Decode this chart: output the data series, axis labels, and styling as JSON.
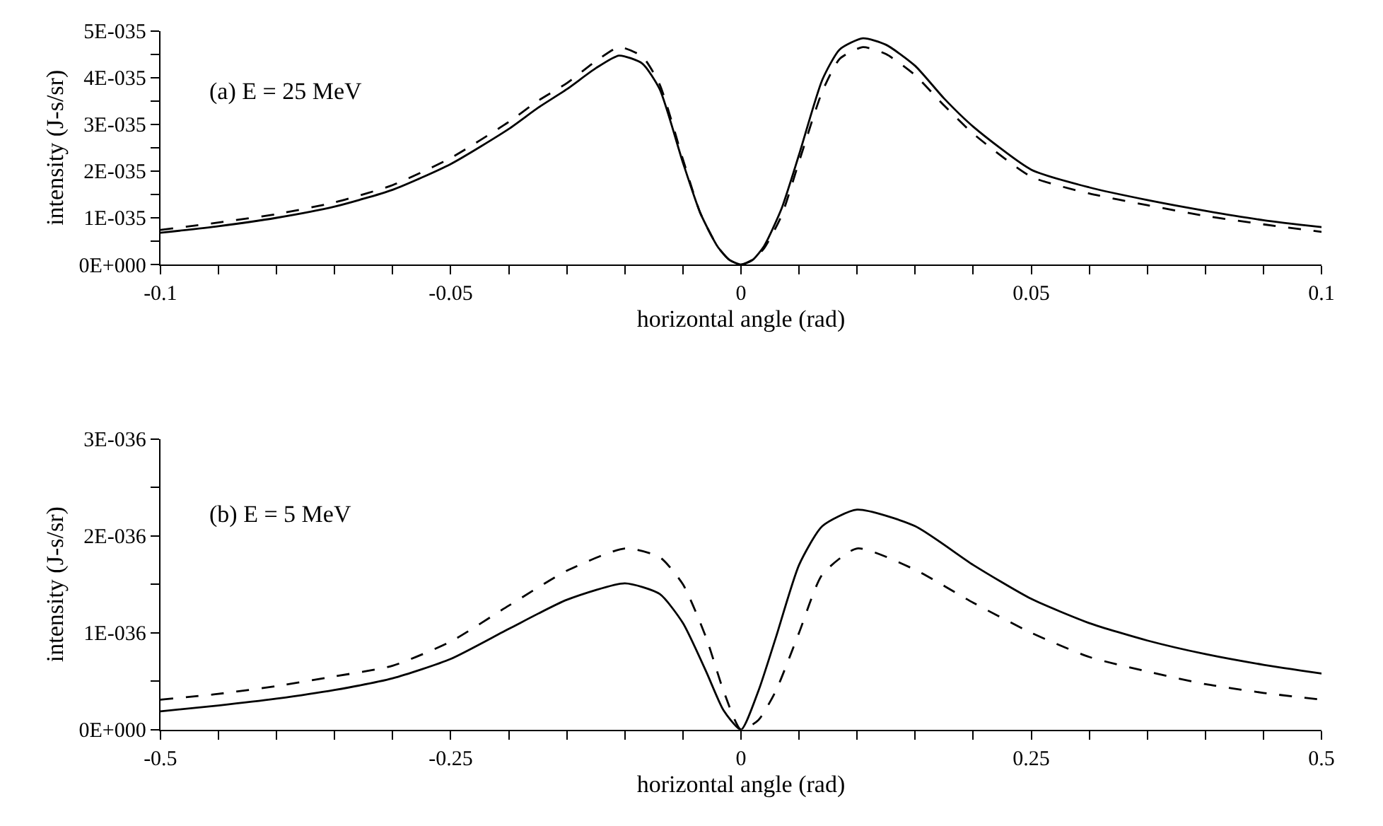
{
  "chart_data": [
    {
      "type": "line",
      "xlabel": "horizontal angle (rad)",
      "ylabel": "intensity (J-s/sr)",
      "annotations": [
        "(a) E = 25 MeV"
      ],
      "marker": "none",
      "xlim": [
        -0.1,
        0.1
      ],
      "xticks": [
        -0.1,
        {
          "value": -0.09,
          "label": null
        },
        {
          "value": -0.08,
          "label": null
        },
        {
          "value": -0.07,
          "label": null
        },
        {
          "value": -0.06,
          "label": null
        },
        -0.05,
        {
          "value": -0.04,
          "label": null
        },
        {
          "value": -0.03,
          "label": null
        },
        {
          "value": -0.02,
          "label": null
        },
        {
          "value": -0.01,
          "label": null
        },
        0,
        {
          "value": 0.01,
          "label": null
        },
        {
          "value": 0.02,
          "label": null
        },
        {
          "value": 0.03,
          "label": null
        },
        {
          "value": 0.04,
          "label": null
        },
        0.05,
        {
          "value": 0.06,
          "label": null
        },
        {
          "value": 0.07,
          "label": null
        },
        {
          "value": 0.08,
          "label": null
        },
        {
          "value": 0.09,
          "label": null
        },
        0.1
      ],
      "ylim": [
        0,
        5e-35
      ],
      "yticks": [
        {
          "value": 0,
          "label": "0E+000"
        },
        {
          "value": 5e-36,
          "label": null
        },
        {
          "value": 1e-35,
          "label": "1E-035"
        },
        {
          "value": 1.5e-35,
          "label": null
        },
        {
          "value": 2e-35,
          "label": "2E-035"
        },
        {
          "value": 2.5e-35,
          "label": null
        },
        {
          "value": 3e-35,
          "label": "3E-035"
        },
        {
          "value": 3.5e-35,
          "label": null
        },
        {
          "value": 4e-35,
          "label": "4E-035"
        },
        {
          "value": 4.5e-35,
          "label": null
        },
        {
          "value": 5e-35,
          "label": "5E-035"
        }
      ],
      "series": [
        {
          "color": "#000000",
          "line_style": "solid",
          "x": [
            -0.1,
            -0.09,
            -0.08,
            -0.07,
            -0.06,
            -0.05,
            -0.04,
            -0.035,
            -0.03,
            -0.025,
            -0.021,
            -0.017,
            -0.014,
            -0.01,
            -0.007,
            -0.004,
            -0.002,
            0,
            0.002,
            0.004,
            0.007,
            0.01,
            0.014,
            0.017,
            0.021,
            0.025,
            0.03,
            0.035,
            0.04,
            0.05,
            0.06,
            0.07,
            0.08,
            0.09,
            0.1
          ],
          "values": [
            6.8e-36,
            8.2e-36,
            1e-35,
            1.24e-35,
            1.6e-35,
            2.15e-35,
            2.9e-35,
            3.35e-35,
            3.75e-35,
            4.2e-35,
            4.47e-35,
            4.3e-35,
            3.75e-35,
            2.18e-35,
            1.1e-35,
            3.8e-36,
            1e-36,
            0,
            1e-36,
            4e-36,
            1.2e-35,
            2.35e-35,
            3.95e-35,
            4.6e-35,
            4.84e-35,
            4.7e-35,
            4.25e-35,
            3.55e-35,
            2.95e-35,
            2.03e-35,
            1.65e-35,
            1.38e-35,
            1.15e-35,
            9.5e-36,
            8e-36
          ]
        },
        {
          "color": "#000000",
          "line_style": "dashed",
          "x": [
            -0.1,
            -0.09,
            -0.08,
            -0.07,
            -0.06,
            -0.05,
            -0.04,
            -0.035,
            -0.03,
            -0.025,
            -0.021,
            -0.017,
            -0.014,
            -0.01,
            -0.007,
            -0.004,
            -0.002,
            0,
            0.002,
            0.004,
            0.007,
            0.01,
            0.014,
            0.017,
            0.021,
            0.025,
            0.03,
            0.035,
            0.04,
            0.05,
            0.06,
            0.07,
            0.08,
            0.09,
            0.1
          ],
          "values": [
            7.4e-36,
            9e-36,
            1.08e-35,
            1.33e-35,
            1.7e-35,
            2.28e-35,
            3.05e-35,
            3.5e-35,
            3.88e-35,
            4.35e-35,
            4.65e-35,
            4.45e-35,
            3.85e-35,
            2.25e-35,
            1.1e-35,
            3.8e-36,
            1e-36,
            0,
            1e-36,
            3.5e-36,
            1.05e-35,
            2.2e-35,
            3.7e-35,
            4.4e-35,
            4.65e-35,
            4.5e-35,
            4.05e-35,
            3.4e-35,
            2.8e-35,
            1.88e-35,
            1.52e-35,
            1.27e-35,
            1.04e-35,
            8.6e-36,
            7e-36
          ]
        }
      ]
    },
    {
      "type": "line",
      "xlabel": "horizontal angle (rad)",
      "ylabel": "intensity (J-s/sr)",
      "annotations": [
        "(b) E = 5 MeV"
      ],
      "marker": "none",
      "xlim": [
        -0.5,
        0.5
      ],
      "xticks": [
        -0.5,
        {
          "value": -0.45,
          "label": null
        },
        {
          "value": -0.4,
          "label": null
        },
        {
          "value": -0.35,
          "label": null
        },
        {
          "value": -0.3,
          "label": null
        },
        -0.25,
        {
          "value": -0.2,
          "label": null
        },
        {
          "value": -0.15,
          "label": null
        },
        {
          "value": -0.1,
          "label": null
        },
        {
          "value": -0.05,
          "label": null
        },
        0,
        {
          "value": 0.05,
          "label": null
        },
        {
          "value": 0.1,
          "label": null
        },
        {
          "value": 0.15,
          "label": null
        },
        {
          "value": 0.2,
          "label": null
        },
        0.25,
        {
          "value": 0.3,
          "label": null
        },
        {
          "value": 0.35,
          "label": null
        },
        {
          "value": 0.4,
          "label": null
        },
        {
          "value": 0.45,
          "label": null
        },
        0.5
      ],
      "ylim": [
        0,
        3e-36
      ],
      "yticks": [
        {
          "value": 0,
          "label": "0E+000"
        },
        {
          "value": 5e-37,
          "label": null
        },
        {
          "value": 1e-36,
          "label": "1E-036"
        },
        {
          "value": 1.5e-36,
          "label": null
        },
        {
          "value": 2e-36,
          "label": "2E-036"
        },
        {
          "value": 2.5e-36,
          "label": null
        },
        {
          "value": 3e-36,
          "label": "3E-036"
        }
      ],
      "series": [
        {
          "color": "#000000",
          "line_style": "solid",
          "x": [
            -0.5,
            -0.45,
            -0.4,
            -0.35,
            -0.3,
            -0.25,
            -0.2,
            -0.15,
            -0.1,
            -0.07,
            -0.05,
            -0.03,
            -0.015,
            0,
            0.015,
            0.03,
            0.05,
            0.07,
            0.1,
            0.15,
            0.2,
            0.25,
            0.3,
            0.35,
            0.4,
            0.45,
            0.5
          ],
          "values": [
            1.9e-37,
            2.5e-37,
            3.2e-37,
            4.1e-37,
            5.3e-37,
            7.3e-37,
            1.04e-36,
            1.34e-36,
            1.51e-36,
            1.4e-36,
            1.1e-36,
            6e-37,
            2e-37,
            0,
            4e-37,
            9.5e-37,
            1.7e-36,
            2.1e-36,
            2.27e-36,
            2.1e-36,
            1.7e-36,
            1.35e-36,
            1.1e-36,
            9.2e-37,
            7.8e-37,
            6.7e-37,
            5.8e-37
          ]
        },
        {
          "color": "#000000",
          "line_style": "dashed",
          "x": [
            -0.5,
            -0.45,
            -0.4,
            -0.35,
            -0.3,
            -0.25,
            -0.2,
            -0.15,
            -0.1,
            -0.07,
            -0.05,
            -0.03,
            -0.015,
            0,
            0.015,
            0.03,
            0.05,
            0.07,
            0.1,
            0.15,
            0.2,
            0.25,
            0.3,
            0.35,
            0.4,
            0.45,
            0.5
          ],
          "values": [
            3.1e-37,
            3.7e-37,
            4.5e-37,
            5.5e-37,
            6.6e-37,
            9.1e-37,
            1.28e-36,
            1.64e-36,
            1.87e-36,
            1.78e-36,
            1.5e-36,
            9.5e-37,
            4e-37,
            0,
            1e-37,
            4e-37,
            1e-36,
            1.6e-36,
            1.87e-36,
            1.65e-36,
            1.31e-36,
            1e-36,
            7.5e-37,
            6e-37,
            4.7e-37,
            3.8e-37,
            3.1e-37
          ]
        }
      ]
    }
  ]
}
